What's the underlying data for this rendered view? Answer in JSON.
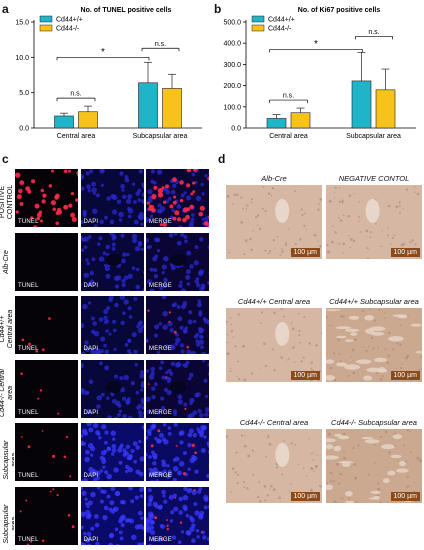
{
  "panels": {
    "a": "a",
    "b": "b",
    "c": "c",
    "d": "d"
  },
  "chart_data": [
    {
      "type": "bar",
      "title": "No. of TUNEL positive cells",
      "categories": [
        "Central area",
        "Subcapsular area"
      ],
      "series": [
        {
          "name": "Cd44+/+",
          "values": [
            1.7,
            6.4
          ],
          "errors": [
            0.4,
            2.9
          ],
          "color": "#1fb5c9"
        },
        {
          "name": "Cd44-/-",
          "values": [
            2.3,
            5.6
          ],
          "errors": [
            0.8,
            2.0
          ],
          "color": "#f6c21b"
        }
      ],
      "ylim": [
        0,
        15
      ],
      "yticks": [
        "0.0",
        "5.0",
        "10.0",
        "15.0"
      ],
      "legend": "top-left",
      "annotations": [
        {
          "label": "n.s.",
          "kind": "within-central"
        },
        {
          "label": "n.s.",
          "kind": "within-subcapsular"
        },
        {
          "label": "*",
          "kind": "between-wt"
        }
      ]
    },
    {
      "type": "bar",
      "title": "No. of Ki67 positive cells",
      "categories": [
        "Central area",
        "Subcapsular area"
      ],
      "series": [
        {
          "name": "Cd44+/+",
          "values": [
            45,
            222
          ],
          "errors": [
            18,
            135
          ],
          "color": "#1fb5c9"
        },
        {
          "name": "Cd44-/-",
          "values": [
            72,
            180
          ],
          "errors": [
            22,
            98
          ],
          "color": "#f6c21b"
        }
      ],
      "ylim": [
        0,
        500
      ],
      "yticks": [
        "0.0",
        "100.0",
        "200.0",
        "300.0",
        "400.0",
        "500.0"
      ],
      "legend": "top-left",
      "annotations": [
        {
          "label": "n.s.",
          "kind": "within-central"
        },
        {
          "label": "n.s.",
          "kind": "within-subcapsular"
        },
        {
          "label": "*",
          "kind": "between-wt"
        }
      ]
    }
  ],
  "panel_c": {
    "columns": [
      "TUNEL",
      "DAPI",
      "MERGE"
    ],
    "rows": [
      {
        "label": "POSITIVE CONTROL",
        "italic": false
      },
      {
        "label": "Alb-Cre",
        "italic": true
      },
      {
        "label": "Cd44+/+ Central area",
        "italic": true
      },
      {
        "label": "Cd44-/- Central area",
        "italic": true
      },
      {
        "label": "Cd44+/+ Subcapsular area",
        "italic": true
      },
      {
        "label": "Cd44-/- Subcapsular area",
        "italic": true
      }
    ]
  },
  "panel_d": {
    "tiles": [
      {
        "caption": "Alb-Cre",
        "scale": "100 µm"
      },
      {
        "caption": "NEGATIVE CONTOL",
        "scale": "100 µm"
      },
      {
        "caption": "Cd44+/+ Central area",
        "scale": "100 µm"
      },
      {
        "caption": "Cd44+/+ Subcapsular area",
        "scale": "100 µm"
      },
      {
        "caption": "Cd44-/- Central area",
        "scale": "100 µm"
      },
      {
        "caption": "Cd44-/- Subcapsular area",
        "scale": "100 µm"
      }
    ]
  }
}
